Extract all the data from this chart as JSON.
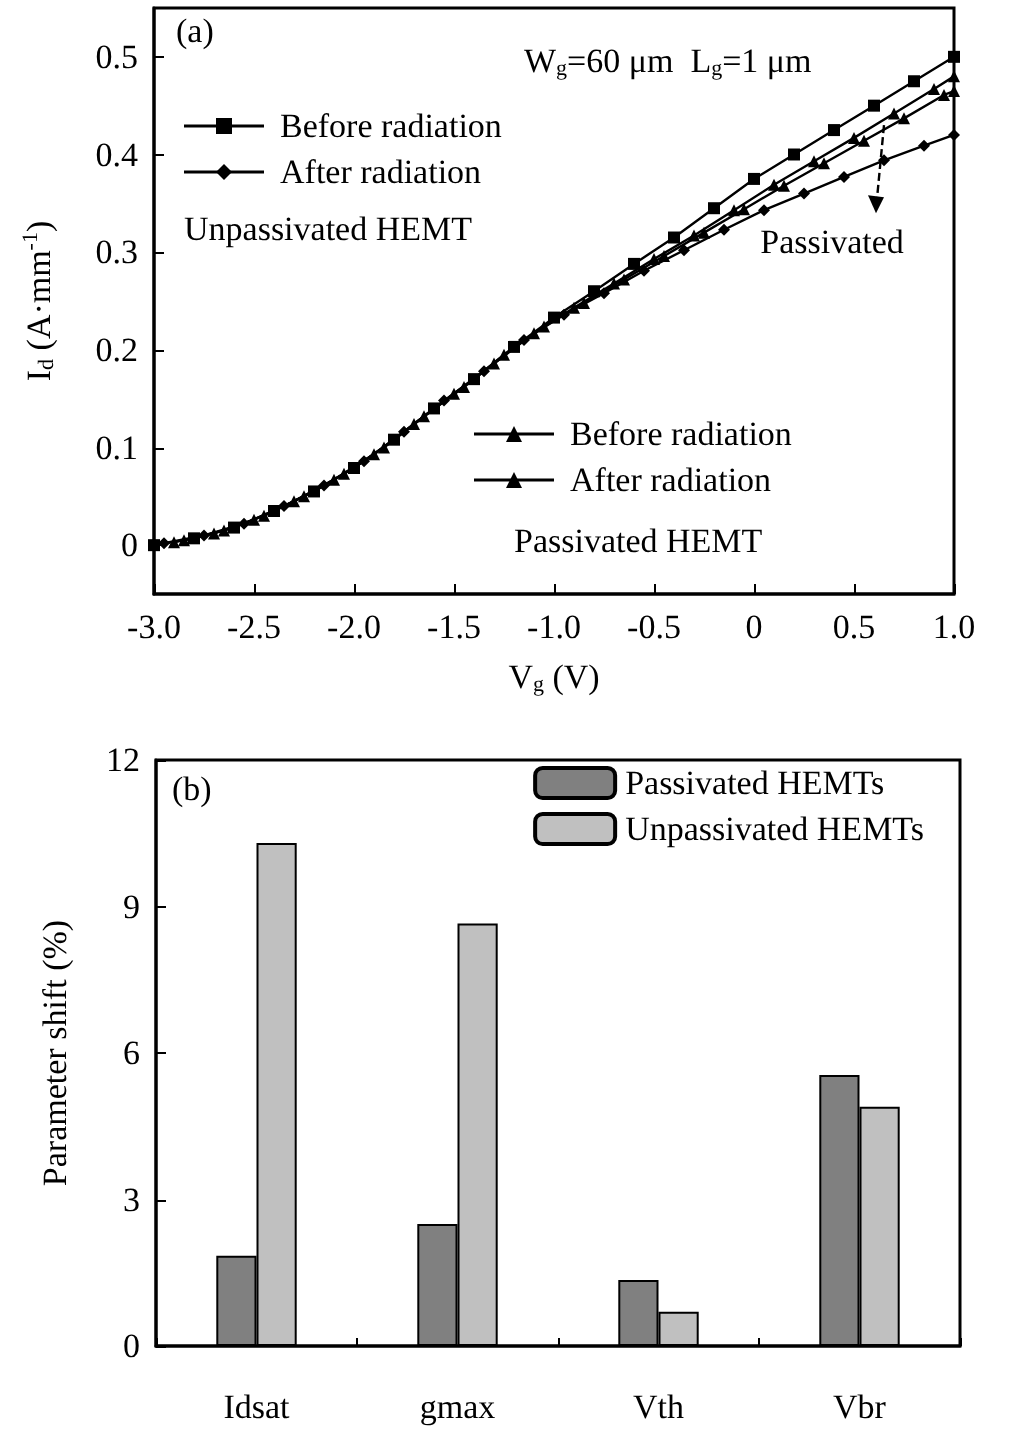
{
  "chart_data": [
    {
      "type": "line",
      "xlabel": "V$_{g}$ (V)",
      "ylabel": "I$_{d}$ (A·mm$^{-1}$)",
      "annotations": [
        "(a)",
        "W$_{g}$=60 μm  L$_{g}$=1 μm",
        "Unpassivated HEMT",
        "Passivated HEMT",
        {
          "text": "Passivated",
          "x": 0.65,
          "y": 0.43
        }
      ],
      "x": [
        -3.0,
        -2.8,
        -2.6,
        -2.4,
        -2.2,
        -2.0,
        -1.8,
        -1.6,
        -1.4,
        -1.2,
        -1.0,
        -0.8,
        -0.6,
        -0.4,
        -0.2,
        0,
        0.2,
        0.4,
        0.6,
        0.8,
        1.0
      ],
      "series": [
        {
          "name": "Before radiation",
          "color": "#000000",
          "marker": "square",
          "values": [
            0.0,
            0.007,
            0.018,
            0.035,
            0.055,
            0.079,
            0.108,
            0.14,
            0.17,
            0.203,
            0.233,
            0.26,
            0.288,
            0.315,
            0.345,
            0.375,
            0.4,
            0.425,
            0.45,
            0.475,
            0.5
          ]
        },
        {
          "name": "After radiation",
          "color": "#000000",
          "marker": "diamond",
          "x": [
            -2.95,
            -2.75,
            -2.55,
            -2.35,
            -2.15,
            -1.95,
            -1.75,
            -1.55,
            -1.35,
            -1.15,
            -0.95,
            -0.75,
            -0.55,
            -0.35,
            -0.15,
            0.05,
            0.25,
            0.45,
            0.65,
            0.85,
            1.0
          ],
          "values": [
            0.002,
            0.01,
            0.022,
            0.04,
            0.061,
            0.086,
            0.116,
            0.148,
            0.178,
            0.21,
            0.236,
            0.258,
            0.281,
            0.302,
            0.323,
            0.343,
            0.36,
            0.377,
            0.394,
            0.409,
            0.42
          ]
        },
        {
          "name": "Before radiation",
          "color": "#000000",
          "marker": "triangle",
          "x": [
            -2.9,
            -2.7,
            -2.5,
            -2.3,
            -2.1,
            -1.9,
            -1.7,
            -1.5,
            -1.3,
            -1.1,
            -0.9,
            -0.7,
            -0.5,
            -0.3,
            -0.1,
            0.1,
            0.3,
            0.5,
            0.7,
            0.9,
            1.0
          ],
          "values": [
            0.003,
            0.012,
            0.026,
            0.045,
            0.067,
            0.093,
            0.124,
            0.155,
            0.186,
            0.217,
            0.243,
            0.268,
            0.293,
            0.317,
            0.343,
            0.369,
            0.393,
            0.417,
            0.442,
            0.467,
            0.48
          ]
        },
        {
          "name": "After radiation",
          "color": "#000000",
          "marker": "triangle",
          "x": [
            -2.85,
            -2.65,
            -2.45,
            -2.25,
            -2.05,
            -1.85,
            -1.65,
            -1.45,
            -1.25,
            -1.05,
            -0.85,
            -0.65,
            -0.45,
            -0.25,
            -0.05,
            0.15,
            0.35,
            0.55,
            0.75,
            0.95,
            1.0
          ],
          "values": [
            0.005,
            0.015,
            0.03,
            0.05,
            0.073,
            0.1,
            0.132,
            0.162,
            0.195,
            0.224,
            0.248,
            0.272,
            0.296,
            0.32,
            0.344,
            0.368,
            0.391,
            0.414,
            0.437,
            0.461,
            0.465
          ]
        }
      ],
      "xlim": [
        -3.0,
        1.0
      ],
      "xticks": [
        {
          "value": -3.0,
          "label": "-3.0"
        },
        -2.5,
        {
          "value": -2.0,
          "label": "-2.0"
        },
        -1.5,
        {
          "value": -1.0,
          "label": "-1.0"
        },
        -0.5,
        0,
        0.5,
        {
          "value": 1.0,
          "label": "1.0"
        }
      ],
      "ylim": [
        -0.05,
        0.55
      ],
      "yticks": [
        0,
        0.1,
        0.2,
        0.3,
        0.4,
        0.5
      ],
      "line_style": "solid",
      "legend": "left",
      "grid": false
    },
    {
      "type": "bar",
      "ylabel": "Parameter shift (%)",
      "annotations": [
        "(b)"
      ],
      "categories": [
        "Idsat",
        "gmax",
        "Vth",
        "Vbr"
      ],
      "series": [
        {
          "name": "Passivated HEMTs",
          "color": "#808080",
          "values": [
            1.85,
            2.5,
            1.35,
            5.55
          ]
        },
        {
          "name": "Unpassivated HEMTs",
          "color": "#c0c0c0",
          "values": [
            10.3,
            8.65,
            0.7,
            4.9
          ]
        }
      ],
      "ylim": [
        0,
        12
      ],
      "yticks": [
        0,
        3,
        6,
        9,
        12
      ],
      "legend": "top right",
      "grid": false
    }
  ]
}
